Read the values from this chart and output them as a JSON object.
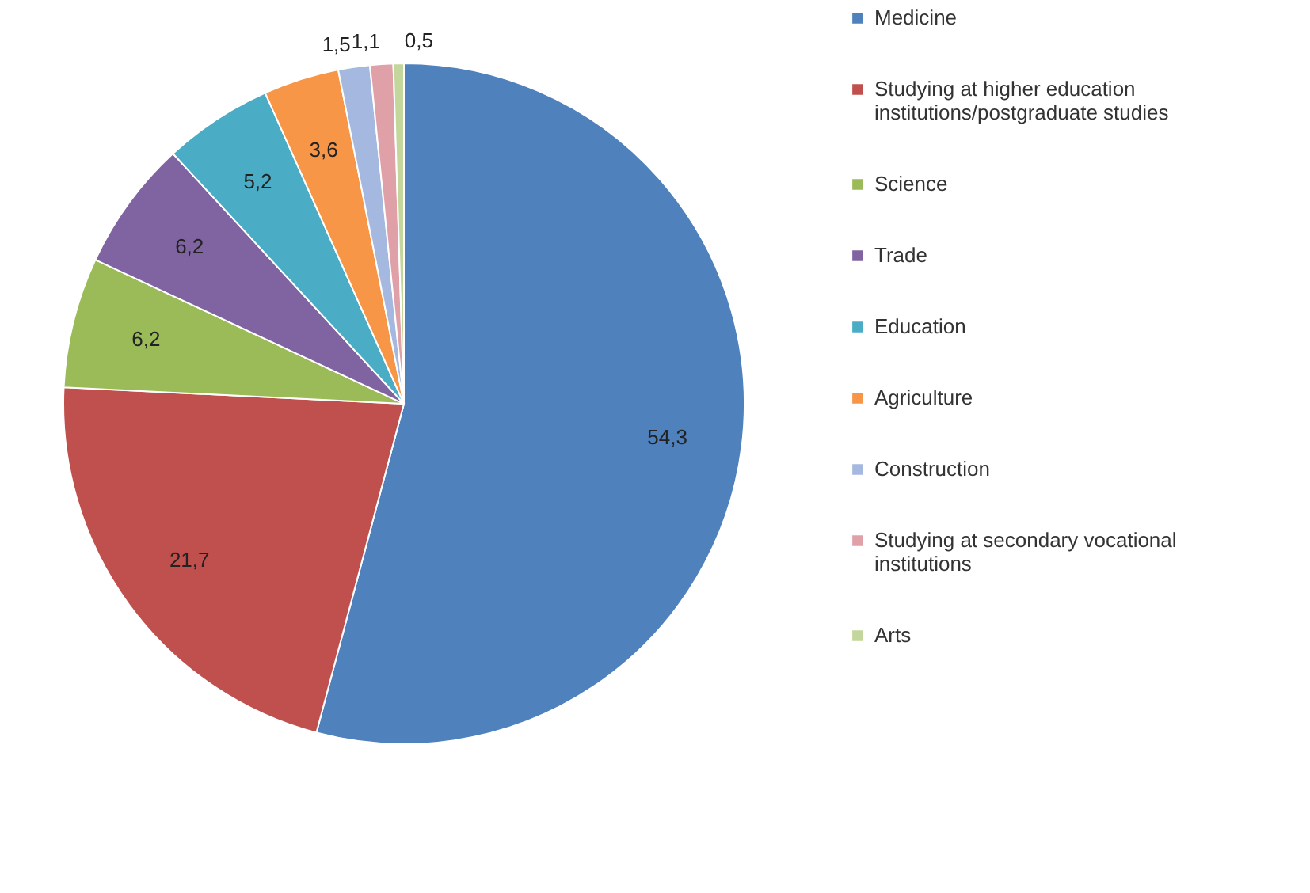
{
  "chart_data": {
    "type": "pie",
    "categories": [
      "Medicine",
      "Studying at higher education institutions/postgraduate studies",
      "Science",
      "Trade",
      "Education",
      "Agriculture",
      "Construction",
      "Studying at secondary vocational institutions",
      "Arts"
    ],
    "values": [
      54.3,
      21.7,
      6.2,
      6.2,
      5.2,
      3.6,
      1.5,
      1.1,
      0.5
    ],
    "value_labels": [
      "54,3",
      "21,7",
      "6,2",
      "6,2",
      "5,2",
      "3,6",
      "1,5",
      "1,1",
      "0,5"
    ],
    "colors": [
      "#4f81bd",
      "#c0504d",
      "#9bbb59",
      "#8064a2",
      "#4bacc6",
      "#f79646",
      "#a5b9e0",
      "#e0a0a8",
      "#c3d69b"
    ],
    "legend": "right"
  }
}
